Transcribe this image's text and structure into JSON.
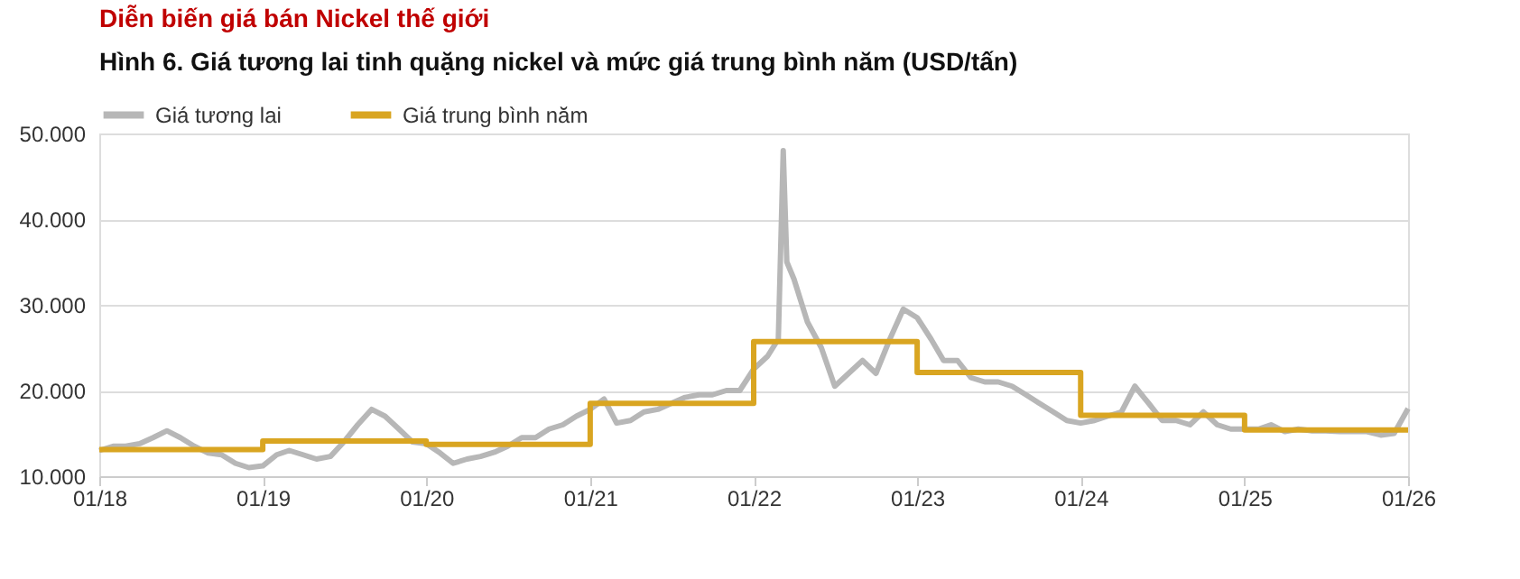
{
  "chart_data": {
    "type": "line",
    "title": "Diễn biến giá bán Nickel thế giới",
    "subtitle": "Hình 6. Giá tương lai tinh quặng nickel và mức giá trung bình năm (USD/tấn)",
    "ylim": [
      10000,
      50000
    ],
    "yticks": [
      {
        "value": 10000,
        "label": "10.000"
      },
      {
        "value": 20000,
        "label": "20.000"
      },
      {
        "value": 30000,
        "label": "30.000"
      },
      {
        "value": 40000,
        "label": "40.000"
      },
      {
        "value": 50000,
        "label": "50.000"
      }
    ],
    "xlim": [
      "2018-01-01",
      "2026-01-01"
    ],
    "xticks": [
      {
        "value": "2018-01-01",
        "label": "01/18"
      },
      {
        "value": "2019-01-01",
        "label": "01/19"
      },
      {
        "value": "2020-01-01",
        "label": "01/20"
      },
      {
        "value": "2021-01-01",
        "label": "01/21"
      },
      {
        "value": "2022-01-01",
        "label": "01/22"
      },
      {
        "value": "2023-01-01",
        "label": "01/23"
      },
      {
        "value": "2024-01-01",
        "label": "01/24"
      },
      {
        "value": "2025-01-01",
        "label": "01/25"
      },
      {
        "value": "2026-01-01",
        "label": "01/26"
      }
    ],
    "grid": "y",
    "legend": "top",
    "series": [
      {
        "name": "Giá tương lai",
        "color": "#b7b7b7",
        "x": [
          "2018-01-01",
          "2018-02-01",
          "2018-03-01",
          "2018-04-01",
          "2018-05-01",
          "2018-06-01",
          "2018-07-01",
          "2018-08-01",
          "2018-09-01",
          "2018-10-01",
          "2018-11-01",
          "2018-12-01",
          "2019-01-01",
          "2019-02-01",
          "2019-03-01",
          "2019-04-01",
          "2019-05-01",
          "2019-06-01",
          "2019-07-01",
          "2019-08-01",
          "2019-09-01",
          "2019-10-01",
          "2019-11-01",
          "2019-12-01",
          "2020-01-01",
          "2020-02-01",
          "2020-03-01",
          "2020-04-01",
          "2020-05-01",
          "2020-06-01",
          "2020-07-01",
          "2020-08-01",
          "2020-09-01",
          "2020-10-01",
          "2020-11-01",
          "2020-12-01",
          "2021-01-01",
          "2021-02-01",
          "2021-03-01",
          "2021-04-01",
          "2021-05-01",
          "2021-06-01",
          "2021-07-01",
          "2021-08-01",
          "2021-09-01",
          "2021-10-01",
          "2021-11-01",
          "2021-12-01",
          "2022-01-01",
          "2022-02-01",
          "2022-02-25",
          "2022-03-08",
          "2022-03-16",
          "2022-04-01",
          "2022-05-01",
          "2022-06-01",
          "2022-07-01",
          "2022-08-01",
          "2022-09-01",
          "2022-10-01",
          "2022-11-01",
          "2022-12-01",
          "2023-01-01",
          "2023-02-01",
          "2023-03-01",
          "2023-04-01",
          "2023-05-01",
          "2023-06-01",
          "2023-07-01",
          "2023-08-01",
          "2023-09-01",
          "2023-10-01",
          "2023-11-01",
          "2023-12-01",
          "2024-01-01",
          "2024-02-01",
          "2024-03-01",
          "2024-04-01",
          "2024-05-01",
          "2024-06-01",
          "2024-07-01",
          "2024-08-01",
          "2024-09-01",
          "2024-10-01",
          "2024-11-01",
          "2024-12-01",
          "2025-01-01",
          "2025-02-01",
          "2025-03-01",
          "2025-04-01",
          "2025-05-01",
          "2025-06-01",
          "2025-07-01",
          "2025-08-01",
          "2025-09-01",
          "2025-10-01",
          "2025-11-01",
          "2025-12-01",
          "2026-01-01"
        ],
        "values": [
          13000,
          13500,
          13500,
          13800,
          14500,
          15300,
          14500,
          13500,
          12700,
          12500,
          11500,
          11000,
          11200,
          12500,
          13000,
          12500,
          12000,
          12300,
          14000,
          16000,
          17800,
          17000,
          15500,
          14000,
          13800,
          12700,
          11500,
          12000,
          12300,
          12800,
          13500,
          14500,
          14500,
          15500,
          16000,
          17000,
          17800,
          19000,
          16200,
          16500,
          17500,
          17800,
          18500,
          19200,
          19500,
          19500,
          20000,
          20000,
          22500,
          24000,
          26000,
          48000,
          35000,
          33000,
          28000,
          25000,
          20500,
          22000,
          23500,
          22000,
          26000,
          29500,
          28500,
          26000,
          23500,
          23500,
          21500,
          21000,
          21000,
          20500,
          19500,
          18500,
          17500,
          16500,
          16200,
          16500,
          17000,
          17500,
          20500,
          18500,
          16500,
          16500,
          16000,
          17500,
          16000,
          15500,
          15500,
          15500,
          16000,
          15200,
          15500,
          15300,
          15300,
          15200,
          15200,
          15200,
          14800,
          15000,
          17900
        ]
      },
      {
        "name": "Giá trung bình năm",
        "color": "#d9a521",
        "type": "step",
        "x": [
          "2018-01-01",
          "2019-01-01",
          "2020-01-01",
          "2021-01-01",
          "2022-01-01",
          "2023-01-01",
          "2024-01-01",
          "2025-01-01",
          "2026-01-01"
        ],
        "values": [
          13100,
          14100,
          13700,
          18500,
          25700,
          22100,
          17100,
          15400,
          15400
        ]
      }
    ]
  }
}
